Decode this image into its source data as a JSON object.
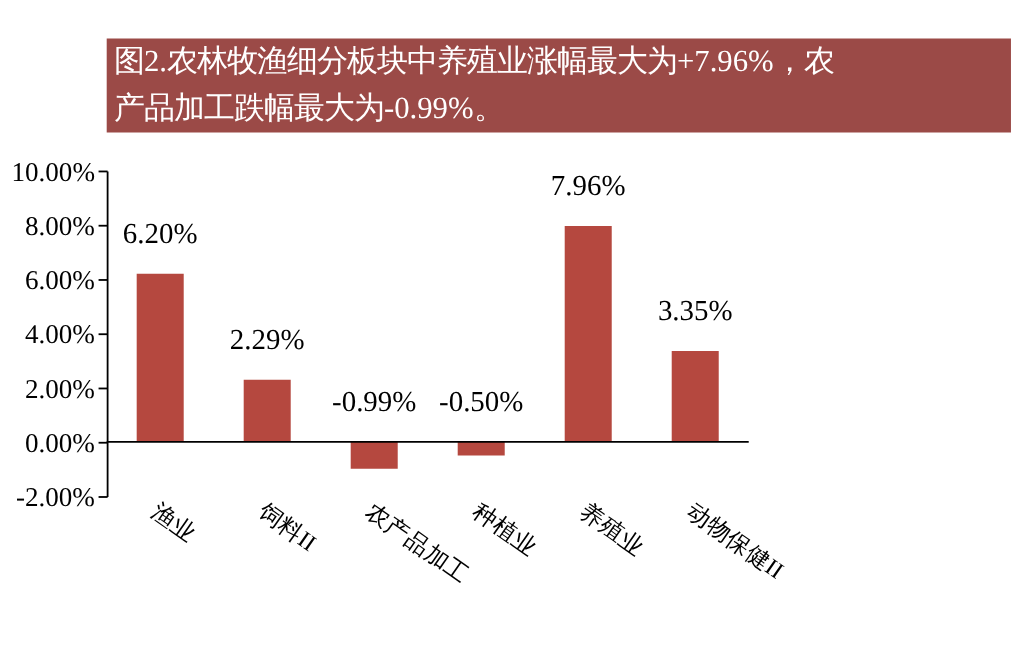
{
  "chart_data": {
    "type": "bar",
    "title": "图2.农林牧渔细分板块中养殖业涨幅最大为+7.96%，农产品加工跌幅最大为-0.99%。",
    "categories": [
      "渔业",
      "饲料II",
      "农产品加工",
      "种植业",
      "养殖业",
      "动物保健II"
    ],
    "values": [
      6.2,
      2.29,
      -0.99,
      -0.5,
      7.96,
      3.35
    ],
    "value_labels": [
      "6.20%",
      "2.29%",
      "-0.99%",
      "-0.50%",
      "7.96%",
      "3.35%"
    ],
    "color": "#b5483f",
    "ylim": [
      -2,
      10
    ],
    "yticks": [
      {
        "value": -2,
        "label": "-2.00%"
      },
      {
        "value": 0,
        "label": "0.00%"
      },
      {
        "value": 2,
        "label": "2.00%"
      },
      {
        "value": 4,
        "label": "4.00%"
      },
      {
        "value": 6,
        "label": "6.00%"
      },
      {
        "value": 8,
        "label": "8.00%"
      },
      {
        "value": 10,
        "label": "10.00%"
      }
    ],
    "grid": false
  }
}
